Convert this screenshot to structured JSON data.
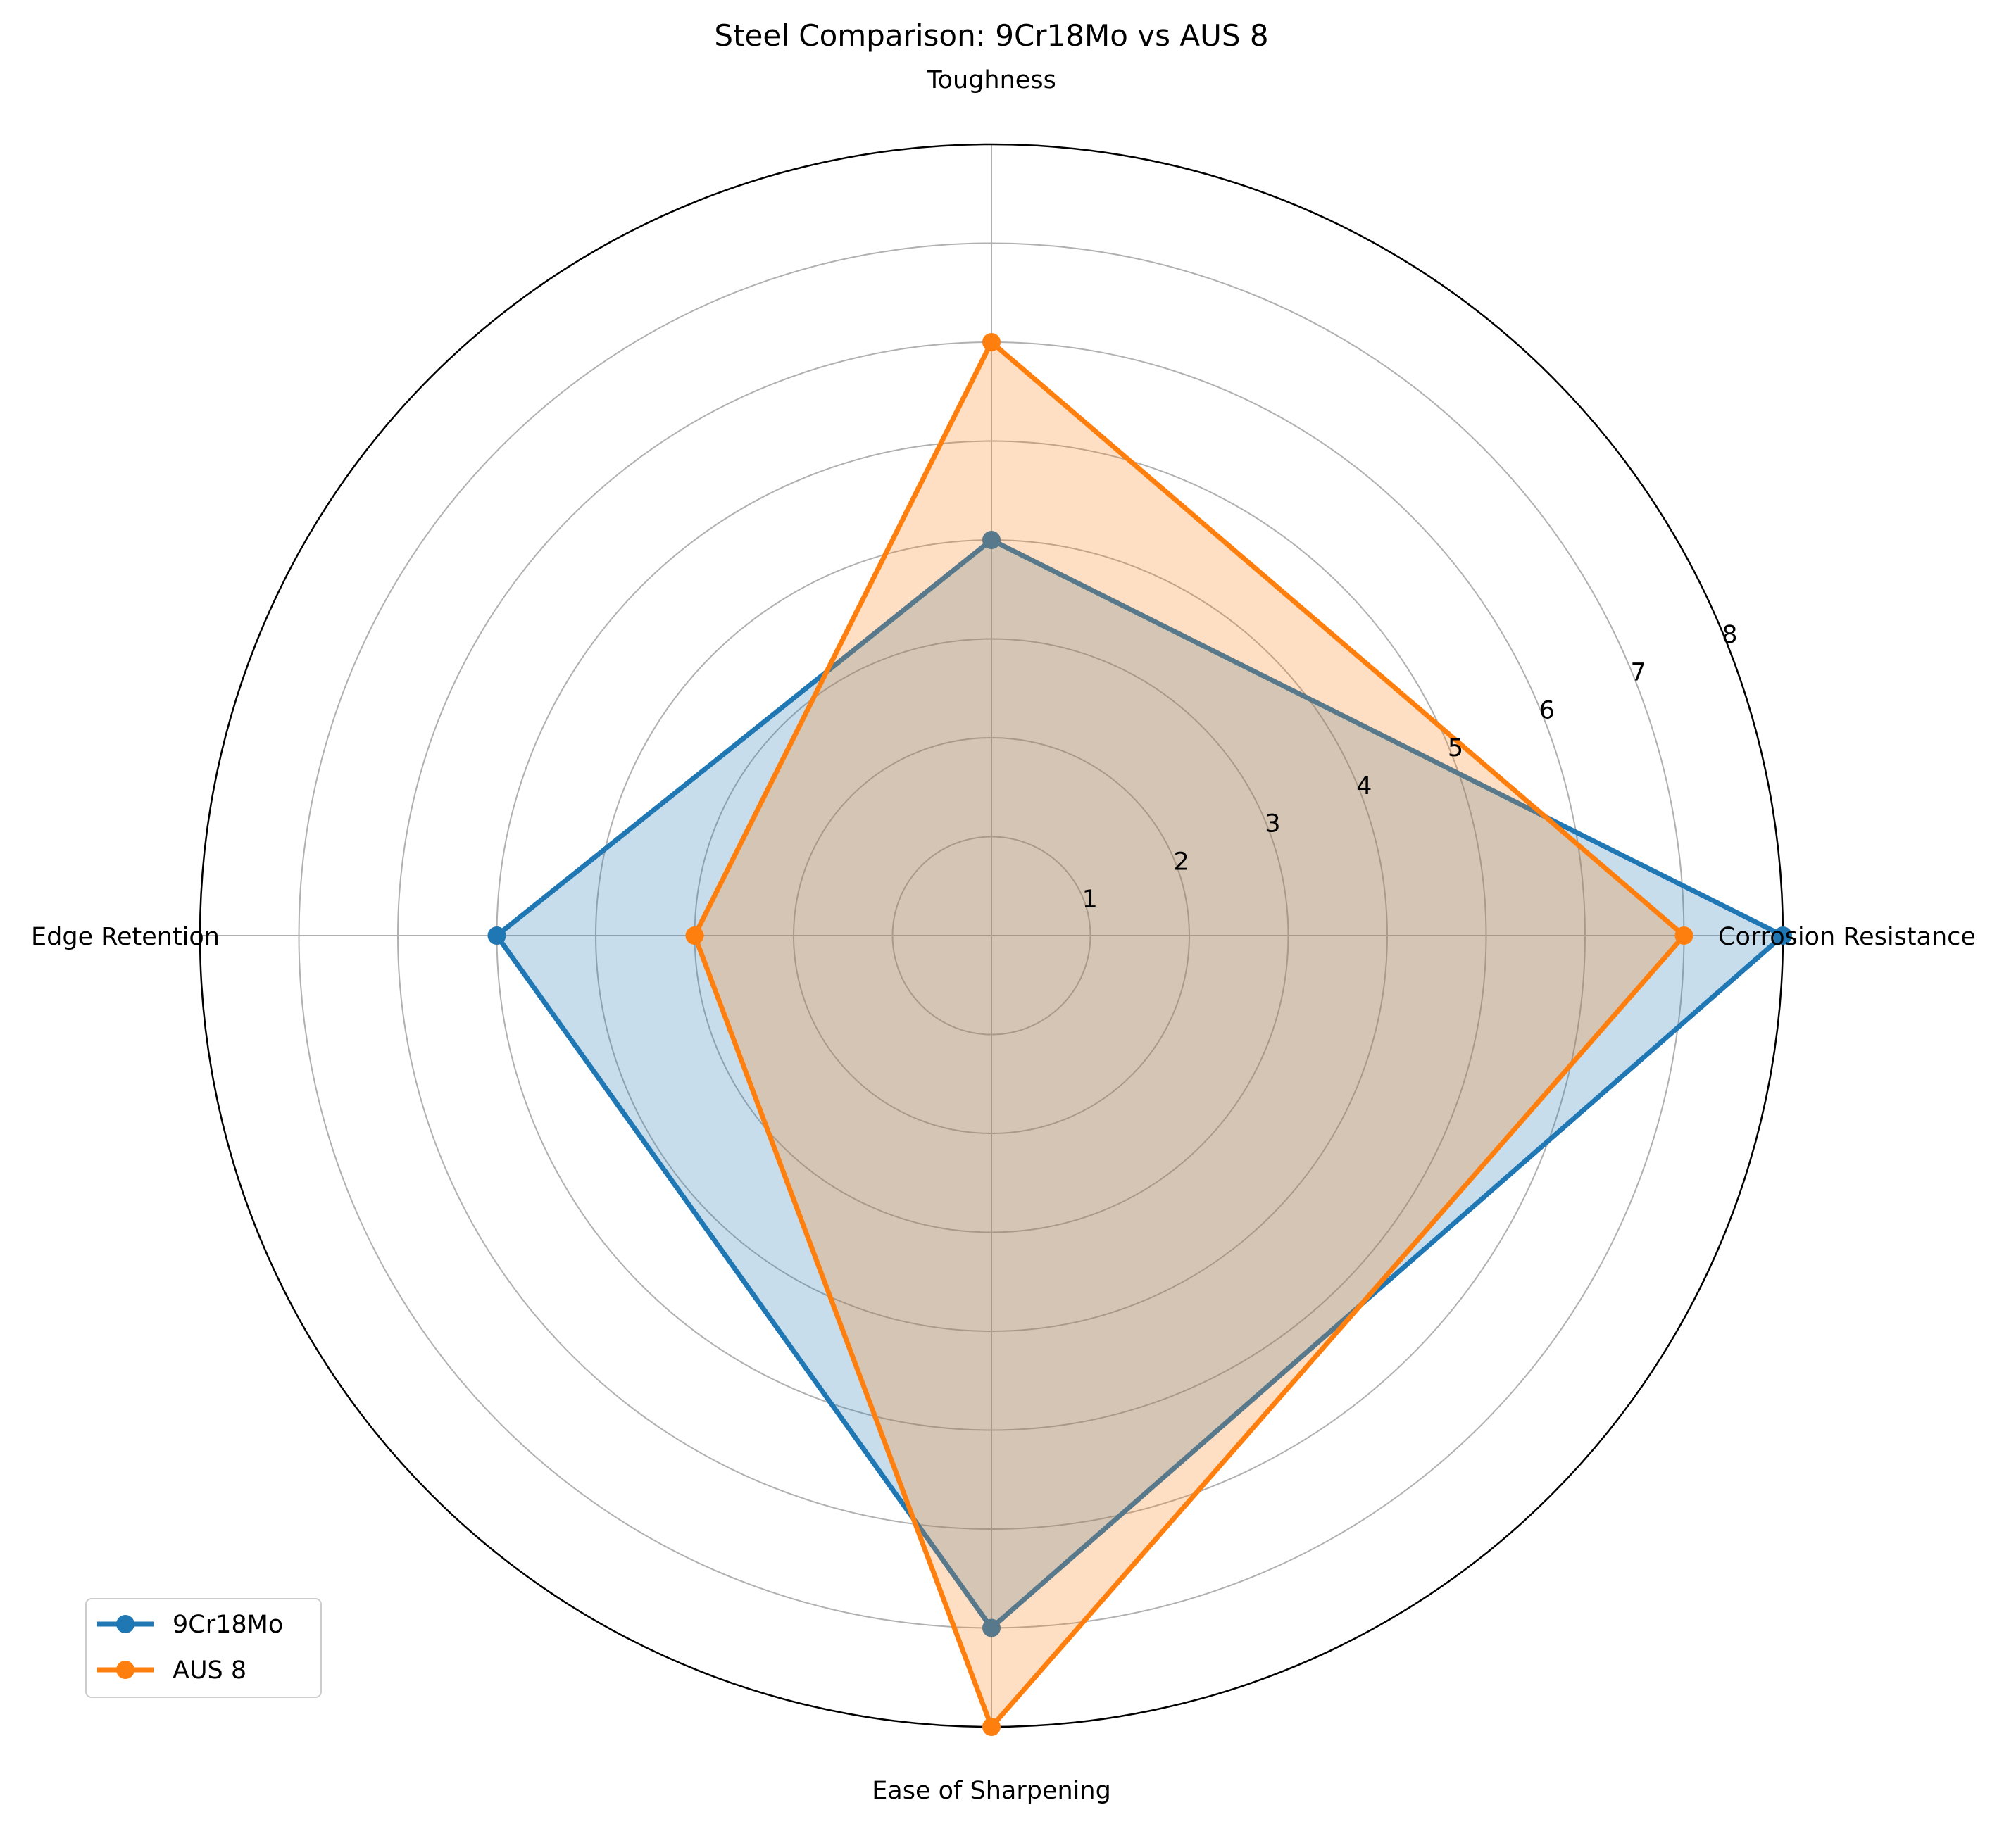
{
  "chart_data": {
    "type": "radar",
    "title": "Steel Comparison: 9Cr18Mo vs AUS 8",
    "categories": [
      "Corrosion Resistance",
      "Toughness",
      "Edge Retention",
      "Ease of Sharpening"
    ],
    "r_ticks": [
      "1",
      "2",
      "3",
      "4",
      "5",
      "6",
      "7",
      "8"
    ],
    "r_max": 8,
    "grid": true,
    "legend_position": "lower-left",
    "series": [
      {
        "name": "9Cr18Mo",
        "values": [
          8,
          4,
          5,
          7
        ],
        "color": "#1f77b4"
      },
      {
        "name": "AUS 8",
        "values": [
          7,
          6,
          3,
          8
        ],
        "color": "#ff7f0e"
      }
    ]
  }
}
